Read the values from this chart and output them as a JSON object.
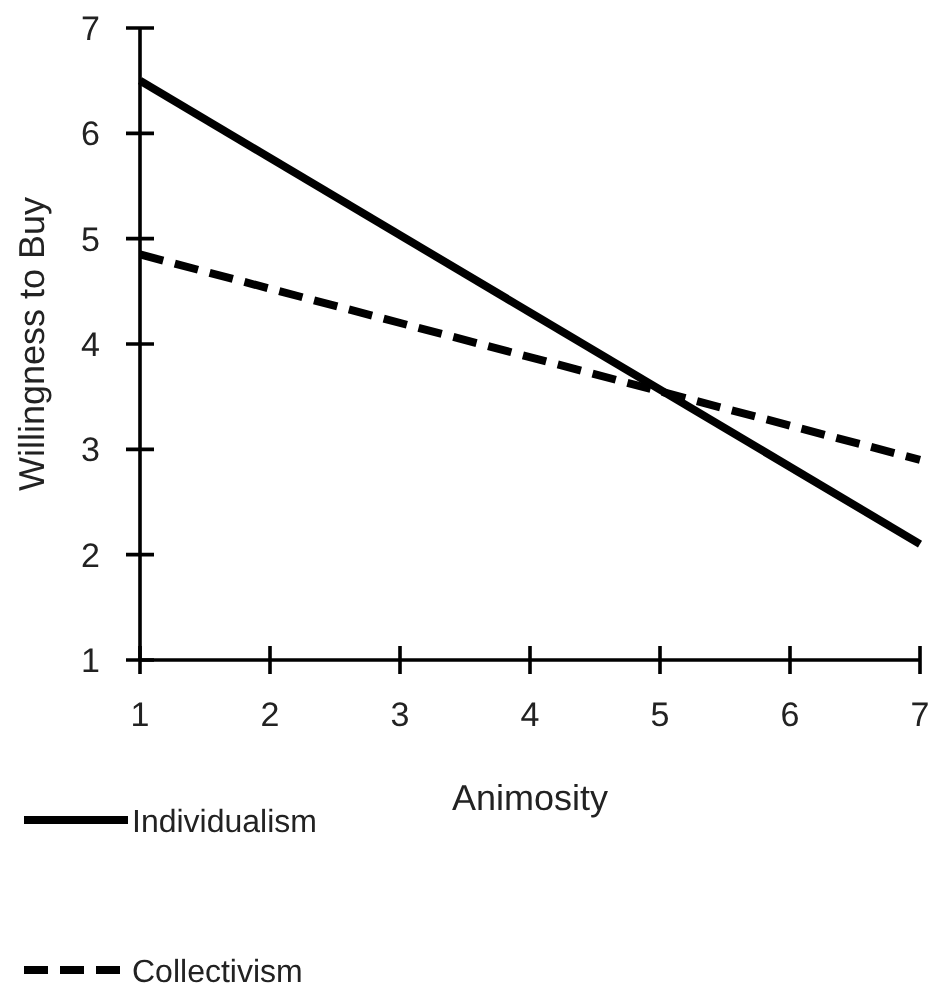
{
  "chart_data": {
    "type": "line",
    "xlabel": "Animosity",
    "ylabel": "Willingness to Buy",
    "x": [
      1,
      7
    ],
    "series": [
      {
        "name": "Individualism",
        "color": "#000000",
        "values": [
          6.5,
          2.1
        ],
        "line_style": "solid"
      },
      {
        "name": "Collectivism",
        "color": "#000000",
        "values": [
          4.85,
          2.9
        ],
        "line_style": "dashed"
      }
    ],
    "xlim": [
      1,
      7
    ],
    "xticks": [
      1,
      2,
      3,
      4,
      5,
      6,
      7
    ],
    "ylim": [
      1,
      7
    ],
    "yticks": [
      1,
      2,
      3,
      4,
      5,
      6,
      7
    ],
    "grid": false,
    "legend": "bottom",
    "marker": "none"
  }
}
